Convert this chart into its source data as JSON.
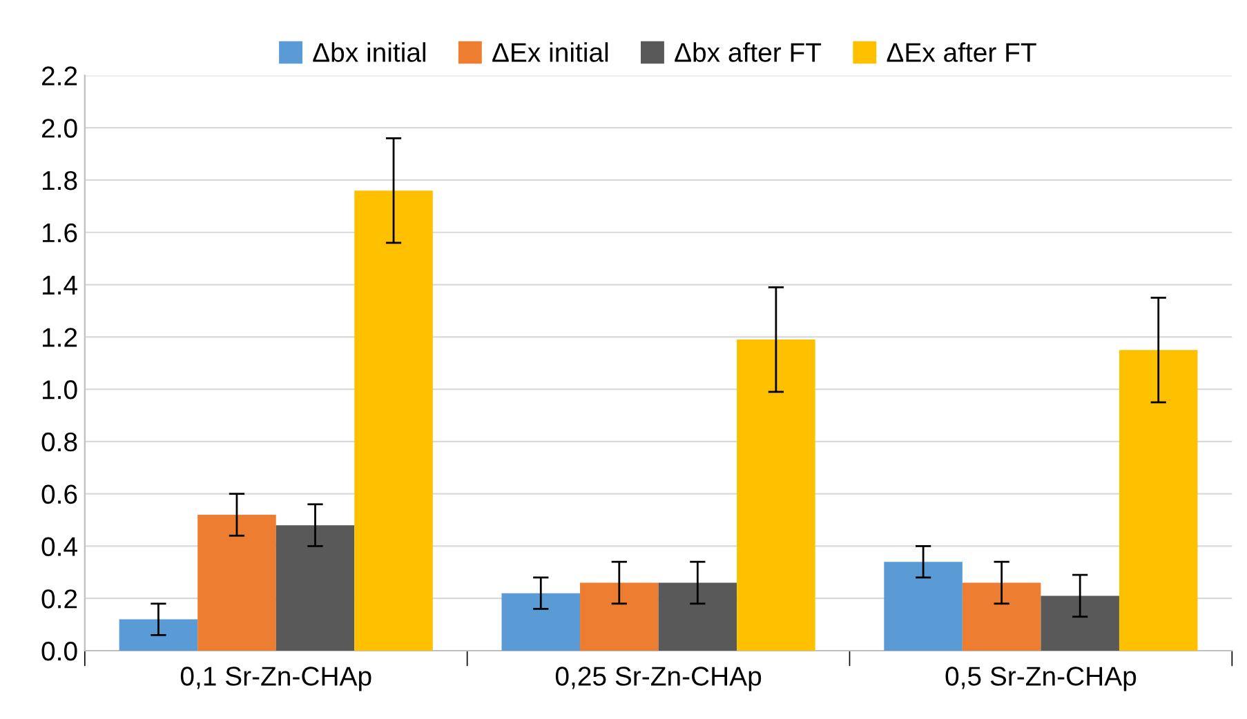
{
  "chart_data": {
    "type": "bar",
    "categories": [
      "0,1 Sr-Zn-CHAp",
      "0,25 Sr-Zn-CHAp",
      "0,5 Sr-Zn-CHAp"
    ],
    "series": [
      {
        "name": "Δbx initial",
        "color": "#5b9bd5",
        "values": [
          0.12,
          0.22,
          0.34
        ],
        "errors": [
          0.06,
          0.06,
          0.06
        ]
      },
      {
        "name": "ΔEx initial",
        "color": "#ed7d31",
        "values": [
          0.52,
          0.26,
          0.26
        ],
        "errors": [
          0.08,
          0.08,
          0.08
        ]
      },
      {
        "name": "Δbx after FT",
        "color": "#595959",
        "values": [
          0.48,
          0.26,
          0.21
        ],
        "errors": [
          0.08,
          0.08,
          0.08
        ]
      },
      {
        "name": "ΔEx after FT",
        "color": "#ffc000",
        "values": [
          1.76,
          1.19,
          1.15
        ],
        "errors": [
          0.2,
          0.2,
          0.2
        ]
      }
    ],
    "ylim": [
      0,
      2.2
    ],
    "yticks": [
      {
        "value": 0,
        "label": "0.0"
      },
      {
        "value": 0.2,
        "label": "0.2"
      },
      {
        "value": 0.4,
        "label": "0.4"
      },
      {
        "value": 0.6,
        "label": "0.6"
      },
      {
        "value": 0.8,
        "label": "0.8"
      },
      {
        "value": 1.0,
        "label": "1.0"
      },
      {
        "value": 1.2,
        "label": "1.2"
      },
      {
        "value": 1.4,
        "label": "1.4"
      },
      {
        "value": 1.6,
        "label": "1.6"
      },
      {
        "value": 1.8,
        "label": "1.8"
      },
      {
        "value": 2.0,
        "label": "2.0"
      },
      {
        "value": 2.2,
        "label": "2.2"
      }
    ],
    "grid": "y",
    "legend": "top"
  }
}
